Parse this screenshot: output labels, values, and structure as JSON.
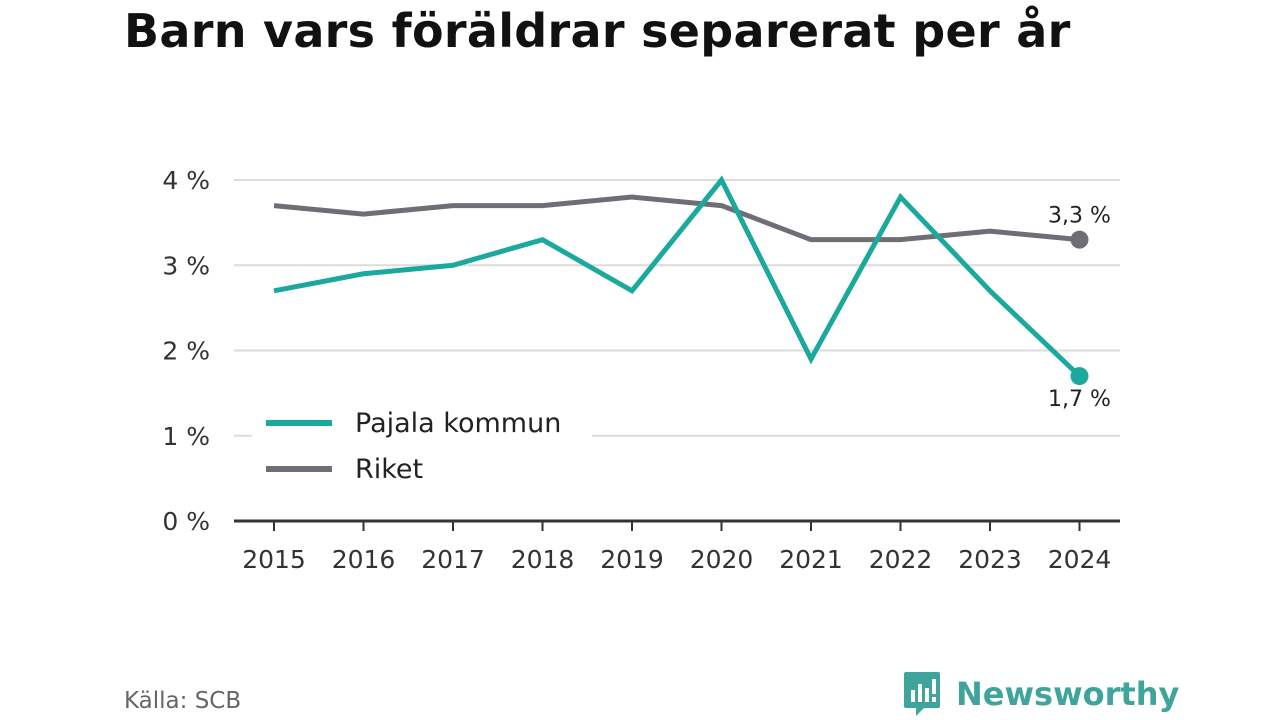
{
  "chart_data": {
    "type": "line",
    "title": "Barn vars föräldrar separerat per år",
    "xlabel": "",
    "ylabel": "",
    "categories": [
      "2015",
      "2016",
      "2017",
      "2018",
      "2019",
      "2020",
      "2021",
      "2022",
      "2023",
      "2024"
    ],
    "series": [
      {
        "name": "Pajala kommun",
        "color": "#1aa99c",
        "values": [
          2.7,
          2.9,
          3.0,
          3.3,
          2.7,
          4.0,
          1.9,
          3.8,
          2.7,
          1.7
        ],
        "end_label": "1,7 %"
      },
      {
        "name": "Riket",
        "color": "#6f6e74",
        "values": [
          3.7,
          3.6,
          3.7,
          3.7,
          3.8,
          3.7,
          3.3,
          3.3,
          3.4,
          3.3
        ],
        "end_label": "3,3 %"
      }
    ],
    "yticks": [
      0,
      1,
      2,
      3,
      4
    ],
    "ytick_labels": [
      "0 %",
      "1 %",
      "2 %",
      "3 %",
      "4 %"
    ],
    "ylim": [
      0,
      4
    ],
    "grid": true,
    "legend_position": "lower-left"
  },
  "source": "Källa: SCB",
  "brand": {
    "name": "Newsworthy",
    "icon": "newsworthy-logo-icon",
    "color": "#3fa59a"
  }
}
